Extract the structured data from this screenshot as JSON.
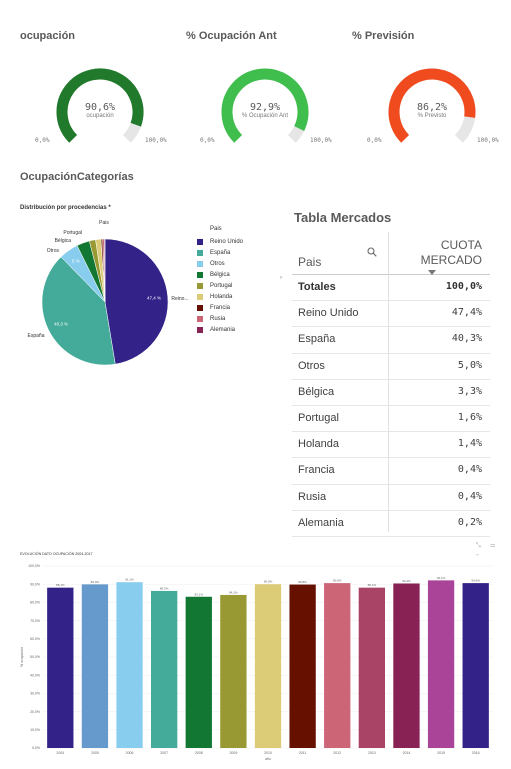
{
  "gauges": [
    {
      "title": "ocupación",
      "value": "90,6%",
      "sublabel": "ocupación",
      "min": "0,0%",
      "max": "100,0%",
      "fraction": 0.906,
      "color": "#217a2b"
    },
    {
      "title": "% Ocupación Ant",
      "value": "92,9%",
      "sublabel": "% Ocupación Ant",
      "min": "0,0%",
      "max": "100,0%",
      "fraction": 0.929,
      "color": "#3fbd4d"
    },
    {
      "title": "% Previsión",
      "value": "86,2%",
      "sublabel": "% Previsto",
      "min": "0,0%",
      "max": "100,0%",
      "fraction": 0.862,
      "color": "#f04a1f"
    }
  ],
  "section_title": "OcupaciónCategorías",
  "side_arrow": "›",
  "pie": {
    "title": "Distribución por procedencias *",
    "legend_title": "Pais",
    "chart_data": {
      "type": "pie",
      "title": "Distribución por procedencias *",
      "legend_title": "Pais",
      "legend_position": "right",
      "slices": [
        {
          "name": "Reino Unido",
          "value": 47.4,
          "color": "#332288",
          "label": "Reino...",
          "inner": "47,4 %"
        },
        {
          "name": "España",
          "value": 40.3,
          "color": "#44aa99",
          "label": "España",
          "inner": "40,3 %"
        },
        {
          "name": "Otros",
          "value": 5.0,
          "color": "#88ccee",
          "label": "Otros",
          "inner": "5 %"
        },
        {
          "name": "Bélgica",
          "value": 3.3,
          "color": "#117733",
          "label": "Bélgica",
          "inner": ""
        },
        {
          "name": "Portugal",
          "value": 1.6,
          "color": "#999933",
          "label": "Portugal",
          "inner": ""
        },
        {
          "name": "Holanda",
          "value": 1.4,
          "color": "#ddcc77",
          "label": "Pais",
          "inner": ""
        },
        {
          "name": "Francia",
          "value": 0.4,
          "color": "#661100",
          "label": "",
          "inner": ""
        },
        {
          "name": "Rusia",
          "value": 0.4,
          "color": "#cc6677",
          "label": "",
          "inner": ""
        },
        {
          "name": "Alemania",
          "value": 0.2,
          "color": "#882255",
          "label": "",
          "inner": ""
        }
      ]
    }
  },
  "table": {
    "title": "Tabla Mercados",
    "col1": "Pais",
    "col2_line1": "CUOTA",
    "col2_line2": "MERCADO",
    "total_label": "Totales",
    "total_value": "100,0%",
    "rows": [
      {
        "pais": "Reino Unido",
        "cuota": "47,4%"
      },
      {
        "pais": "España",
        "cuota": "40,3%"
      },
      {
        "pais": "Otros",
        "cuota": "5,0%"
      },
      {
        "pais": "Bélgica",
        "cuota": "3,3%"
      },
      {
        "pais": "Portugal",
        "cuota": "1,6%"
      },
      {
        "pais": "Holanda",
        "cuota": "1,4%"
      },
      {
        "pais": "Francia",
        "cuota": "0,4%"
      },
      {
        "pais": "Rusia",
        "cuota": "0,4%"
      },
      {
        "pais": "Alemania",
        "cuota": "0,2%"
      }
    ]
  },
  "bottom": {
    "title": "EVOLUCIÓN DATO OCUPACIÓN 2004-2017",
    "tools": "⤡ ▭ ⌄",
    "chart_data": {
      "type": "bar",
      "title": "EVOLUCIÓN DATO OCUPACIÓN 2004-2017",
      "ylabel": "% ocupación",
      "xlabel": "año",
      "ylim": [
        0,
        100
      ],
      "yticks": [
        "0,0%",
        "10,0%",
        "20,0%",
        "30,0%",
        "40,0%",
        "50,0%",
        "60,0%",
        "70,0%",
        "80,0%",
        "90,0%",
        "100,0%"
      ],
      "categories": [
        "2004",
        "2005",
        "2006",
        "2007",
        "2008",
        "2009",
        "2010",
        "2011",
        "2012",
        "2013",
        "2014",
        "2015",
        "2016"
      ],
      "values": [
        88.1,
        89.9,
        91.1,
        86.3,
        83.1,
        84.1,
        90.0,
        89.8,
        90.6,
        88.1,
        90.4,
        92.1,
        90.6
      ],
      "labels": [
        "88,1%",
        "89,9%",
        "91,1%",
        "86,3%",
        "83,1%",
        "84,1%",
        "90,0%",
        "89,8%",
        "90,6%",
        "88,1%",
        "90,4%",
        "92,1%",
        "90,6%"
      ],
      "colors": [
        "#332288",
        "#6699cc",
        "#88ccee",
        "#44aa99",
        "#117733",
        "#999933",
        "#ddcc77",
        "#661100",
        "#cc6677",
        "#aa4466",
        "#882255",
        "#aa4499",
        "#332288"
      ],
      "grid": true
    }
  }
}
